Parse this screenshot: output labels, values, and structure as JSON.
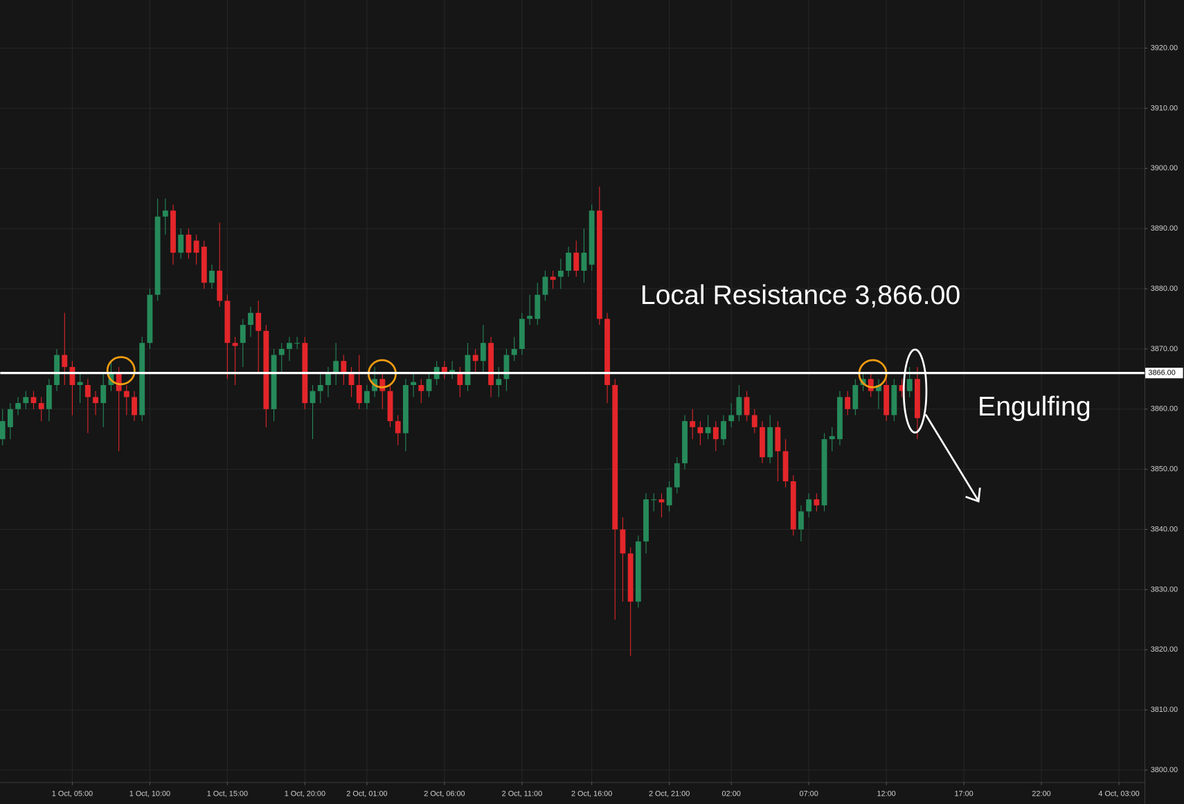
{
  "chart_data": {
    "type": "candlestick",
    "open": [
      3855,
      3857,
      3860,
      3861,
      3862,
      3861,
      3860,
      3864,
      3869,
      3867,
      3864,
      3864,
      3862,
      3861,
      3864,
      3866,
      3863,
      3862,
      3859,
      3871,
      3879,
      3892,
      3893,
      3886,
      3889,
      3888,
      3887,
      3881,
      3883,
      3878,
      3871,
      3871,
      3874,
      3876,
      3873,
      3860,
      3869,
      3870,
      3871,
      3871,
      3861,
      3863,
      3864,
      3866,
      3868,
      3866,
      3864,
      3861,
      3863,
      3865,
      3863,
      3858,
      3856,
      3864,
      3864,
      3863,
      3865,
      3867,
      3866,
      3866,
      3864,
      3869,
      3868,
      3871,
      3864,
      3865,
      3869,
      3870,
      3875,
      3875,
      3879,
      3882,
      3882,
      3883,
      3886,
      3883,
      3884,
      3893,
      3875,
      3864,
      3840,
      3836,
      3828,
      3838,
      3845,
      3845,
      3844,
      3847,
      3851,
      3858,
      3857,
      3856,
      3857,
      3855,
      3858,
      3859,
      3862,
      3859,
      3857,
      3852,
      3857,
      3853,
      3848,
      3840,
      3843,
      3845,
      3844,
      3855,
      3855,
      3862,
      3860,
      3864,
      3865,
      3863,
      3864,
      3859,
      3864,
      3863,
      3865
    ],
    "high": [
      3860,
      3861,
      3862,
      3863,
      3863,
      3862,
      3865,
      3870,
      3876,
      3868,
      3866,
      3865,
      3863,
      3866,
      3868,
      3867,
      3864,
      3863,
      3872,
      3880,
      3895,
      3895,
      3894,
      3890,
      3890,
      3889,
      3888,
      3884,
      3891,
      3879,
      3872,
      3875,
      3877,
      3878,
      3874,
      3870,
      3871,
      3872,
      3872,
      3872,
      3864,
      3866,
      3867,
      3871,
      3869,
      3867,
      3869,
      3864,
      3867,
      3866,
      3864,
      3859,
      3865,
      3866,
      3865,
      3866,
      3868,
      3868,
      3868,
      3867,
      3871,
      3870,
      3874,
      3872,
      3867,
      3870,
      3872,
      3876,
      3879,
      3881,
      3883,
      3883,
      3885,
      3887,
      3888,
      3890,
      3894,
      3897,
      3876,
      3865,
      3842,
      3837,
      3839,
      3846,
      3846,
      3846,
      3848,
      3852,
      3859,
      3860,
      3858,
      3859,
      3858,
      3859,
      3861,
      3864,
      3863,
      3860,
      3858,
      3859,
      3858,
      3855,
      3849,
      3844,
      3846,
      3846,
      3856,
      3857,
      3863,
      3863,
      3865,
      3866,
      3866,
      3865,
      3865,
      3865,
      3865,
      3867,
      3867
    ],
    "low": [
      3854,
      3855,
      3859,
      3860,
      3860,
      3858,
      3858,
      3863,
      3864,
      3859,
      3861,
      3856,
      3859,
      3857,
      3863,
      3853,
      3859,
      3858,
      3858,
      3870,
      3878,
      3889,
      3884,
      3885,
      3885,
      3884,
      3880,
      3880,
      3877,
      3865,
      3864,
      3867,
      3872,
      3866,
      3857,
      3858,
      3866,
      3868,
      3870,
      3860,
      3855,
      3861,
      3862,
      3864,
      3864,
      3862,
      3860,
      3860,
      3862,
      3860,
      3857,
      3854,
      3853,
      3862,
      3861,
      3862,
      3864,
      3865,
      3865,
      3862,
      3863,
      3866,
      3866,
      3862,
      3862,
      3863,
      3868,
      3869,
      3874,
      3874,
      3878,
      3880,
      3880,
      3882,
      3882,
      3881,
      3883,
      3874,
      3861,
      3825,
      3828,
      3819,
      3827,
      3836,
      3843,
      3842,
      3843,
      3846,
      3850,
      3855,
      3854,
      3855,
      3853,
      3854,
      3857,
      3858,
      3858,
      3856,
      3851,
      3851,
      3848,
      3847,
      3839,
      3838,
      3842,
      3843,
      3843,
      3853,
      3854,
      3859,
      3859,
      3863,
      3862,
      3860,
      3858,
      3858,
      3862,
      3862,
      3855
    ],
    "close": [
      3858,
      3860,
      3861,
      3862,
      3861,
      3860,
      3864,
      3869,
      3867,
      3864,
      3864.5,
      3862,
      3861,
      3864,
      3866,
      3863,
      3862,
      3859,
      3871,
      3879,
      3892,
      3893,
      3886,
      3889,
      3886,
      3886,
      3881,
      3883,
      3878,
      3871,
      3870.5,
      3874,
      3876,
      3873,
      3860,
      3869,
      3870,
      3871,
      3871,
      3861,
      3863,
      3864,
      3866,
      3868,
      3866,
      3864,
      3861,
      3863,
      3865,
      3863,
      3858,
      3856,
      3864,
      3864.5,
      3863,
      3865,
      3867,
      3866,
      3866.5,
      3864,
      3869,
      3868,
      3871,
      3864,
      3865,
      3869,
      3870,
      3875,
      3875.5,
      3879,
      3882,
      3881.5,
      3883,
      3886,
      3883,
      3886,
      3893,
      3875,
      3864,
      3840,
      3836,
      3828,
      3838,
      3845,
      3845,
      3844.5,
      3847,
      3851,
      3858,
      3857,
      3856,
      3857,
      3855,
      3858,
      3859,
      3862,
      3859,
      3857,
      3852,
      3857,
      3853,
      3848,
      3840,
      3843,
      3845,
      3844,
      3855,
      3855.5,
      3862,
      3860,
      3864,
      3865,
      3863,
      3864,
      3859,
      3864,
      3863,
      3865,
      3858.5
    ],
    "up_color": "#268a5a",
    "down_color": "#e3262a",
    "xlim": [
      -0.3,
      147.3
    ],
    "xticks": [
      {
        "value": 9,
        "label": "1 Oct, 05:00"
      },
      {
        "value": 19,
        "label": "1 Oct, 10:00"
      },
      {
        "value": 29,
        "label": "1 Oct, 15:00"
      },
      {
        "value": 39,
        "label": "1 Oct, 20:00"
      },
      {
        "value": 47,
        "label": "2 Oct, 01:00"
      },
      {
        "value": 57,
        "label": "2 Oct, 06:00"
      },
      {
        "value": 67,
        "label": "2 Oct, 11:00"
      },
      {
        "value": 76,
        "label": "2 Oct, 16:00"
      },
      {
        "value": 86,
        "label": "2 Oct, 21:00"
      },
      {
        "value": 94,
        "label": "02:00"
      },
      {
        "value": 104,
        "label": "07:00"
      },
      {
        "value": 114,
        "label": "12:00"
      },
      {
        "value": 124,
        "label": "17:00"
      },
      {
        "value": 134,
        "label": "22:00"
      },
      {
        "value": 144,
        "label": "4 Oct, 03:00"
      }
    ],
    "ylim": [
      3798,
      3928
    ],
    "yticks": [
      {
        "value": 3800,
        "label": "3800.00"
      },
      {
        "value": 3810,
        "label": "3810.00"
      },
      {
        "value": 3820,
        "label": "3820.00"
      },
      {
        "value": 3830,
        "label": "3830.00"
      },
      {
        "value": 3840,
        "label": "3840.00"
      },
      {
        "value": 3850,
        "label": "3850.00"
      },
      {
        "value": 3860,
        "label": "3860.00"
      },
      {
        "value": 3870,
        "label": "3870.00"
      },
      {
        "value": 3880,
        "label": "3880.00"
      },
      {
        "value": 3890,
        "label": "3890.00"
      },
      {
        "value": 3900,
        "label": "3900.00"
      },
      {
        "value": 3910,
        "label": "3910.00"
      },
      {
        "value": 3920,
        "label": "3920.00"
      }
    ],
    "grid": true,
    "resistance": {
      "value": 3866,
      "label": "3866.00"
    },
    "annotations": [
      "Local Resistance 3,866.00",
      "Engulfing"
    ]
  }
}
